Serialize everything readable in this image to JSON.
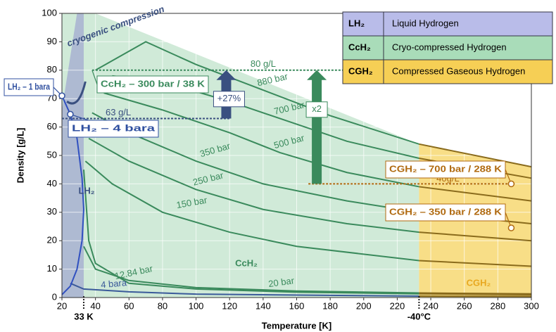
{
  "chart_data": {
    "type": "line",
    "xlabel": "Temperature [K]",
    "ylabel": "Density [g/L]",
    "xlim": [
      20,
      300
    ],
    "xticks": [
      20,
      40,
      60,
      80,
      100,
      120,
      140,
      160,
      180,
      200,
      220,
      240,
      260,
      280,
      300
    ],
    "ylim": [
      0,
      100
    ],
    "yticks": [
      0,
      10,
      20,
      30,
      40,
      50,
      60,
      70,
      80,
      90,
      100
    ],
    "xmarkers": [
      {
        "value": 33,
        "label": "33 K"
      },
      {
        "value": 233,
        "label": "-40°C"
      }
    ],
    "regions": [
      {
        "name": "CcH₂",
        "description": "Cryo-compressed Hydrogen",
        "color": "#cbe8d4",
        "legend_color": "#a9dcb9",
        "x": [
          20,
          40,
          233,
          233,
          20
        ],
        "values": [
          100,
          100,
          54,
          0,
          0
        ]
      },
      {
        "name": "CGH₂",
        "description": "Compressed Gaseous Hydrogen",
        "color": "#f7da7a",
        "legend_color": "#f6cf55",
        "x": [
          233,
          300,
          300,
          233
        ],
        "values": [
          54,
          46,
          0,
          0
        ]
      },
      {
        "name": "LH₂",
        "description": "Liquid Hydrogen",
        "color": "#aab5d2",
        "legend_color": "#b9bce9",
        "x": [
          20,
          29,
          33,
          33,
          20
        ],
        "values": [
          66,
          100,
          100,
          0,
          0
        ]
      }
    ],
    "line_color_cgh2": "#8a6b1c",
    "series": [
      {
        "name": "880 bar",
        "color": "#3a8a5c",
        "x": [
          40,
          70,
          100,
          140,
          180,
          233,
          300
        ],
        "values": [
          80,
          90,
          82,
          73,
          64,
          54,
          46
        ]
      },
      {
        "name": "700 bar",
        "color": "#3a8a5c",
        "x": [
          50,
          80,
          120,
          150,
          190,
          233,
          300
        ],
        "values": [
          78,
          76,
          69,
          63,
          55,
          49,
          42
        ]
      },
      {
        "name": "500 bar",
        "color": "#3a8a5c",
        "x": [
          45,
          80,
          120,
          150,
          190,
          233,
          300
        ],
        "values": [
          72,
          66,
          58,
          51,
          44,
          39,
          34
        ]
      },
      {
        "name": "350 bar",
        "color": "#3a8a5c",
        "x": [
          38,
          60,
          100,
          140,
          190,
          233,
          300
        ],
        "values": [
          65,
          58,
          48,
          40,
          34,
          30,
          26
        ]
      },
      {
        "name": "250 bar",
        "color": "#3a8a5c",
        "x": [
          36,
          60,
          100,
          140,
          190,
          233,
          300
        ],
        "values": [
          56,
          48,
          38,
          31,
          26,
          23,
          20
        ]
      },
      {
        "name": "150 bar",
        "color": "#3a8a5c",
        "x": [
          34,
          50,
          80,
          120,
          160,
          233,
          300
        ],
        "values": [
          48,
          40,
          30,
          23,
          18,
          13,
          11
        ]
      },
      {
        "name": "20 bar",
        "color": "#3a8a5c",
        "x": [
          33,
          40,
          60,
          100,
          160,
          233,
          300
        ],
        "values": [
          18,
          10,
          6,
          3.5,
          2.3,
          1.6,
          1.3
        ]
      },
      {
        "name": "12.84 bar",
        "color": "#3a8a5c",
        "x": [
          33,
          36,
          40,
          60,
          100,
          160,
          233,
          300
        ],
        "values": [
          45,
          20,
          12,
          5,
          3,
          1.9,
          1.3,
          1
        ]
      },
      {
        "name": "4 bara",
        "color": "#3a5a9a",
        "x": [
          25,
          33,
          60,
          100,
          233,
          300
        ],
        "values": [
          5,
          3,
          2,
          1.2,
          0.5,
          0.4
        ]
      },
      {
        "color": "#3050c0",
        "x": [
          20,
          25,
          29,
          32,
          33,
          32,
          29,
          25,
          20
        ],
        "values": [
          71,
          64.5,
          56,
          42,
          31,
          20,
          10,
          4,
          1
        ]
      }
    ],
    "reference_lines": [
      {
        "label": "80 g/L",
        "value": 80,
        "x": [
          38,
          252
        ],
        "color": "#3a8a5c"
      },
      {
        "label": "63 g/L",
        "value": 63,
        "x": [
          20,
          120
        ],
        "color": "#3a5080"
      },
      {
        "label": "40g/L",
        "value": 40,
        "x": [
          167,
          290
        ],
        "color": "#b06a10"
      }
    ],
    "arrows": [
      {
        "label": "+27%",
        "x": 118,
        "from": 63,
        "to": 80,
        "color": "#3a5080"
      },
      {
        "label": "x2",
        "x": 172,
        "from": 40,
        "to": 80,
        "color": "#3a8a5c"
      }
    ],
    "annotations": [
      {
        "label": "LH₂ – 1 bara",
        "x": 20,
        "y": 71,
        "color": "#3050a0"
      },
      {
        "label": "LH₂ – 4 bara",
        "x": 25,
        "y": 64.5,
        "color": "#3050a0"
      },
      {
        "label": "CcH₂ – 300 bar / 38 K",
        "x": 38,
        "y": 80,
        "color": "#3a8a5c"
      },
      {
        "label": "CGH₂ – 700 bar / 288 K",
        "x": 288,
        "y": 40,
        "color": "#b06a10"
      },
      {
        "label": "CGH₂ – 350 bar / 288 K",
        "x": 288,
        "y": 24.5,
        "color": "#b06a10"
      }
    ],
    "note": "cryogenic compression"
  }
}
